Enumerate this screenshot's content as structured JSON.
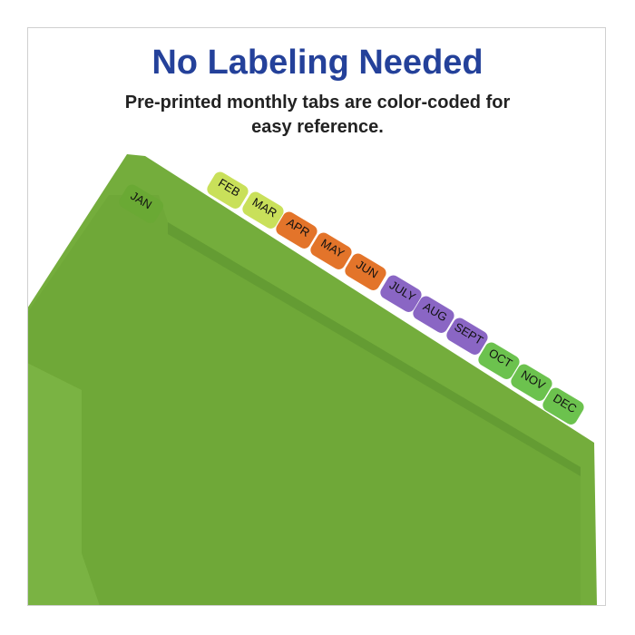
{
  "headline": "No Labeling Needed",
  "subtitle": "Pre-printed monthly tabs are color-coded for easy reference.",
  "colors": {
    "headline": "#24419a",
    "folder": "#72ab3a",
    "yellow_green": "#c9e05a",
    "orange": "#e3742a",
    "purple": "#8a66c4",
    "green": "#6cc24e"
  },
  "tabs": [
    {
      "label": "JAN",
      "color": "#6aa934"
    },
    {
      "label": "FEB",
      "color": "#c9e05a"
    },
    {
      "label": "MAR",
      "color": "#c9e05a"
    },
    {
      "label": "APR",
      "color": "#e3742a"
    },
    {
      "label": "MAY",
      "color": "#e3742a"
    },
    {
      "label": "JUN",
      "color": "#e3742a"
    },
    {
      "label": "JULY",
      "color": "#8a66c4"
    },
    {
      "label": "AUG",
      "color": "#8a66c4"
    },
    {
      "label": "SEPT",
      "color": "#8a66c4"
    },
    {
      "label": "OCT",
      "color": "#6cc24e"
    },
    {
      "label": "NOV",
      "color": "#6cc24e"
    },
    {
      "label": "DEC",
      "color": "#6cc24e"
    }
  ]
}
